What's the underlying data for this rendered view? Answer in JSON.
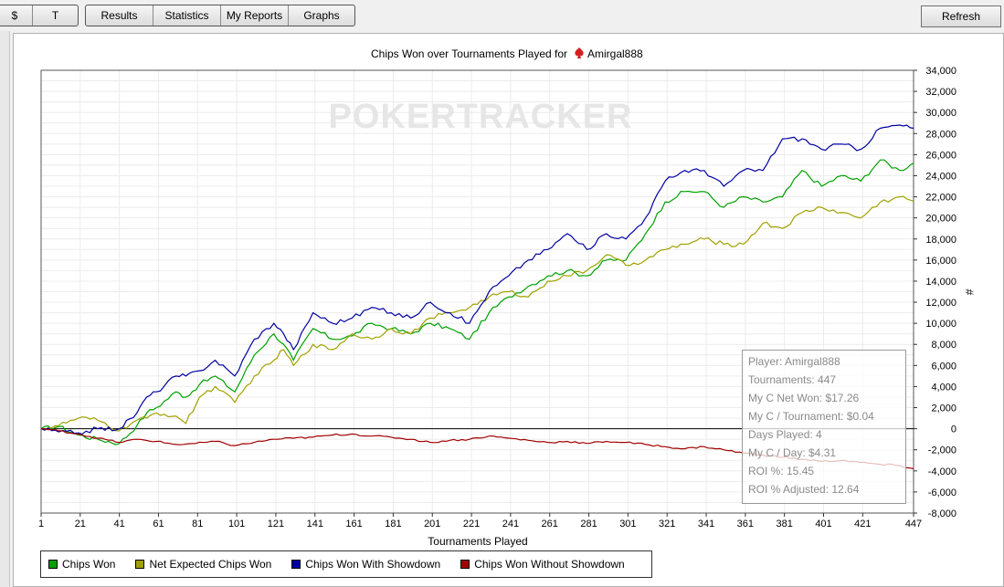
{
  "toolbar": {
    "currency_tabs": [
      "$",
      "T"
    ],
    "nav_tabs": [
      "Results",
      "Statistics",
      "My Reports",
      "Graphs"
    ],
    "refresh_label": "Refresh"
  },
  "chart_data": {
    "type": "line",
    "title": "Chips Won over Tournaments Played for",
    "player_name": "Amirgal888",
    "xlabel": "Tournaments Played",
    "ylabel": "#",
    "watermark": "POKERTRACKER",
    "xlim": [
      1,
      447
    ],
    "ylim": [
      -8000,
      34000
    ],
    "x_ticks": [
      1,
      21,
      41,
      61,
      81,
      101,
      121,
      141,
      161,
      181,
      201,
      221,
      241,
      261,
      281,
      301,
      321,
      341,
      361,
      381,
      401,
      421,
      447
    ],
    "y_ticks": [
      -8000,
      -6000,
      -4000,
      -2000,
      0,
      2000,
      4000,
      6000,
      8000,
      10000,
      12000,
      14000,
      16000,
      18000,
      20000,
      22000,
      24000,
      26000,
      28000,
      30000,
      32000,
      34000
    ],
    "y_tick_labels": [
      "-8,000",
      "-6,000",
      "-4,000",
      "-2,000",
      "0",
      "2,000",
      "4,000",
      "6,000",
      "8,000",
      "10,000",
      "12,000",
      "14,000",
      "16,000",
      "18,000",
      "20,000",
      "22,000",
      "24,000",
      "26,000",
      "28,000",
      "30,000",
      "32,000",
      "34,000"
    ],
    "grid": true,
    "legend_position": "bottom",
    "series": [
      {
        "name": "Chips Won",
        "color": "#00a000",
        "x": [
          1,
          10,
          20,
          30,
          41,
          50,
          55,
          60,
          70,
          75,
          82,
          90,
          100,
          110,
          120,
          125,
          130,
          140,
          150,
          160,
          170,
          180,
          190,
          200,
          210,
          220,
          230,
          240,
          250,
          260,
          270,
          280,
          290,
          300,
          310,
          320,
          330,
          340,
          350,
          360,
          370,
          380,
          390,
          400,
          410,
          420,
          430,
          440,
          447
        ],
        "values": [
          0,
          200,
          -600,
          -1000,
          -1400,
          300,
          1500,
          2000,
          3500,
          3000,
          4200,
          5000,
          3500,
          7000,
          9000,
          8000,
          6500,
          9500,
          8500,
          8800,
          10000,
          9500,
          9000,
          10000,
          9500,
          8500,
          11000,
          12500,
          13500,
          14500,
          15000,
          14500,
          16000,
          16000,
          18500,
          21500,
          22500,
          22500,
          21000,
          22000,
          21500,
          22000,
          24500,
          23000,
          24000,
          23500,
          25500,
          24500,
          25200
        ]
      },
      {
        "name": "Net Expected Chips Won",
        "color": "#a0a000",
        "x": [
          1,
          10,
          20,
          30,
          41,
          50,
          55,
          60,
          70,
          75,
          82,
          90,
          100,
          110,
          120,
          125,
          130,
          140,
          150,
          160,
          170,
          180,
          190,
          200,
          210,
          220,
          230,
          240,
          250,
          260,
          270,
          280,
          290,
          300,
          310,
          320,
          330,
          340,
          350,
          360,
          370,
          380,
          390,
          400,
          410,
          420,
          430,
          440,
          447
        ],
        "values": [
          0,
          300,
          1000,
          800,
          -200,
          800,
          1000,
          1500,
          1200,
          500,
          3000,
          4000,
          2500,
          5000,
          6500,
          7500,
          6000,
          8000,
          7500,
          9000,
          8500,
          9500,
          9000,
          10500,
          11000,
          11500,
          12500,
          13000,
          12500,
          14000,
          14500,
          15000,
          16500,
          15500,
          16000,
          17000,
          17500,
          18000,
          17500,
          17500,
          19500,
          19000,
          20500,
          21000,
          20500,
          20000,
          21500,
          22000,
          21600
        ]
      },
      {
        "name": "Chips Won With Showdown",
        "color": "#0000a0",
        "x": [
          1,
          10,
          20,
          30,
          41,
          50,
          55,
          60,
          70,
          75,
          82,
          90,
          100,
          110,
          120,
          125,
          130,
          140,
          150,
          160,
          170,
          180,
          190,
          200,
          210,
          220,
          230,
          240,
          250,
          260,
          270,
          280,
          290,
          300,
          310,
          320,
          330,
          340,
          350,
          360,
          370,
          380,
          390,
          400,
          410,
          420,
          430,
          440,
          447
        ],
        "values": [
          0,
          -300,
          -400,
          0,
          0,
          1500,
          3000,
          3500,
          5000,
          5000,
          5500,
          6500,
          5000,
          8500,
          10000,
          9000,
          7500,
          11000,
          10000,
          10500,
          11500,
          11000,
          10500,
          12000,
          11000,
          10000,
          13000,
          14500,
          16000,
          17000,
          18500,
          17000,
          18500,
          18000,
          20000,
          23500,
          24500,
          24500,
          23000,
          24500,
          24500,
          27500,
          27500,
          26500,
          27000,
          26500,
          28500,
          28800,
          28500
        ]
      },
      {
        "name": "Chips Won Without Showdown",
        "color": "#a00000",
        "x": [
          1,
          10,
          20,
          30,
          41,
          50,
          60,
          70,
          80,
          90,
          100,
          110,
          120,
          130,
          140,
          150,
          160,
          170,
          180,
          190,
          200,
          210,
          220,
          230,
          240,
          250,
          260,
          270,
          280,
          290,
          300,
          310,
          320,
          330,
          340,
          350,
          360,
          370,
          380,
          390,
          400,
          410,
          420,
          430,
          440,
          447
        ],
        "values": [
          0,
          -200,
          -500,
          -900,
          -1300,
          -1000,
          -1200,
          -1500,
          -1400,
          -1200,
          -1600,
          -1300,
          -1000,
          -900,
          -800,
          -600,
          -500,
          -700,
          -800,
          -1000,
          -1300,
          -1100,
          -1000,
          -700,
          -900,
          -1100,
          -1300,
          -1200,
          -1400,
          -1200,
          -1300,
          -1500,
          -1700,
          -1900,
          -1700,
          -2000,
          -2300,
          -2500,
          -2700,
          -2900,
          -3100,
          -3000,
          -3200,
          -3400,
          -3500,
          -3800
        ]
      }
    ]
  },
  "info_panel": {
    "player": "Player: Amirgal888",
    "tournaments": "Tournaments: 447",
    "net_won": "My C Net Won: $17.26",
    "per_tournament": "My C / Tournament: $0.04",
    "days_played": "Days Played: 4",
    "per_day": "My C / Day: $4.31",
    "roi": "ROI %: 15.45",
    "roi_adjusted": "ROI % Adjusted: 12.64"
  }
}
